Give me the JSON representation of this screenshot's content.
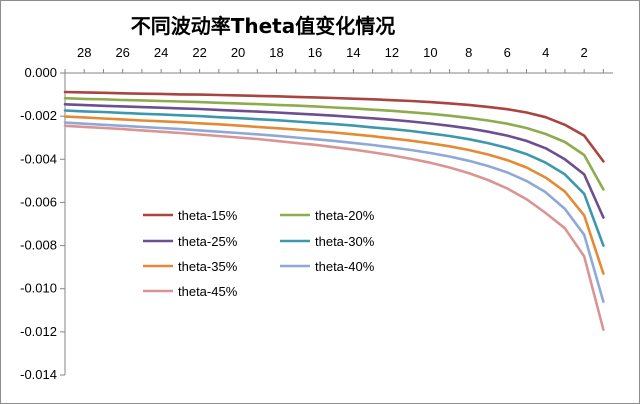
{
  "chart_data": {
    "type": "line",
    "title": "不同波动率Theta值变化情况",
    "xlabel": "",
    "ylabel": "",
    "x_ticks": [
      "28",
      "26",
      "24",
      "22",
      "20",
      "18",
      "16",
      "14",
      "12",
      "10",
      "8",
      "6",
      "4",
      "2"
    ],
    "x_range": [
      29,
      0.5
    ],
    "ylim": [
      -0.014,
      0
    ],
    "y_ticks": [
      0,
      -0.002,
      -0.004,
      -0.006,
      -0.008,
      -0.01,
      -0.012,
      -0.014
    ],
    "y_tick_labels": [
      "0.000",
      "-0.002",
      "-0.004",
      "-0.006",
      "-0.008",
      "-0.010",
      "-0.012",
      "-0.014"
    ],
    "grid": false,
    "legend_position": "lower-left",
    "x": [
      29,
      28,
      27,
      26,
      25,
      24,
      23,
      22,
      21,
      20,
      19,
      18,
      17,
      16,
      15,
      14,
      13,
      12,
      11,
      10,
      9,
      8,
      7,
      6,
      5,
      4,
      3,
      2,
      1
    ],
    "series": [
      {
        "name": "theta-15%",
        "color": "#a94441",
        "values": [
          -0.00088,
          -0.0009,
          -0.00092,
          -0.00094,
          -0.00096,
          -0.00097,
          -0.00099,
          -0.001,
          -0.00102,
          -0.00104,
          -0.00106,
          -0.00108,
          -0.00111,
          -0.00113,
          -0.00116,
          -0.00119,
          -0.00122,
          -0.00126,
          -0.0013,
          -0.00135,
          -0.00141,
          -0.00148,
          -0.00157,
          -0.00168,
          -0.00183,
          -0.00205,
          -0.0024,
          -0.0029,
          -0.0041
        ]
      },
      {
        "name": "theta-20%",
        "color": "#8cac4d",
        "values": [
          -0.00117,
          -0.0012,
          -0.00122,
          -0.00125,
          -0.00127,
          -0.0013,
          -0.00132,
          -0.00135,
          -0.00138,
          -0.00141,
          -0.00144,
          -0.00148,
          -0.00151,
          -0.00155,
          -0.0016,
          -0.00164,
          -0.0017,
          -0.00175,
          -0.00182,
          -0.00189,
          -0.00198,
          -0.00208,
          -0.0022,
          -0.00235,
          -0.00255,
          -0.00283,
          -0.0032,
          -0.0038,
          -0.0054
        ]
      },
      {
        "name": "theta-25%",
        "color": "#6d4e8f",
        "values": [
          -0.00145,
          -0.00149,
          -0.00152,
          -0.00155,
          -0.00158,
          -0.00161,
          -0.00164,
          -0.00167,
          -0.00171,
          -0.00175,
          -0.00179,
          -0.00183,
          -0.00188,
          -0.00193,
          -0.00198,
          -0.00204,
          -0.0021,
          -0.00217,
          -0.00225,
          -0.00234,
          -0.00245,
          -0.00257,
          -0.00272,
          -0.0029,
          -0.00315,
          -0.00349,
          -0.004,
          -0.0047,
          -0.0067
        ]
      },
      {
        "name": "theta-30%",
        "color": "#3d98ad",
        "values": [
          -0.00174,
          -0.00178,
          -0.00181,
          -0.00185,
          -0.00189,
          -0.00192,
          -0.00196,
          -0.002,
          -0.00205,
          -0.00209,
          -0.00214,
          -0.00219,
          -0.00225,
          -0.00231,
          -0.00237,
          -0.00244,
          -0.00252,
          -0.0026,
          -0.00269,
          -0.0028,
          -0.00292,
          -0.00307,
          -0.00325,
          -0.00347,
          -0.00376,
          -0.00416,
          -0.0047,
          -0.0056,
          -0.008
        ]
      },
      {
        "name": "theta-35%",
        "color": "#e48a35",
        "values": [
          -0.00202,
          -0.00206,
          -0.00211,
          -0.00215,
          -0.0022,
          -0.00224,
          -0.00228,
          -0.00233,
          -0.00238,
          -0.00244,
          -0.0025,
          -0.00256,
          -0.00262,
          -0.00269,
          -0.00276,
          -0.00284,
          -0.00293,
          -0.00303,
          -0.00314,
          -0.00326,
          -0.0034,
          -0.00357,
          -0.00378,
          -0.00404,
          -0.00438,
          -0.00485,
          -0.0055,
          -0.0066,
          -0.0093
        ]
      },
      {
        "name": "theta-40%",
        "color": "#8ea8d8",
        "values": [
          -0.0023,
          -0.00235,
          -0.0024,
          -0.00245,
          -0.0025,
          -0.00255,
          -0.0026,
          -0.00266,
          -0.00272,
          -0.00278,
          -0.00284,
          -0.00291,
          -0.00299,
          -0.00307,
          -0.00315,
          -0.00324,
          -0.00334,
          -0.00345,
          -0.00357,
          -0.00371,
          -0.00387,
          -0.00407,
          -0.00431,
          -0.00461,
          -0.005,
          -0.00553,
          -0.0063,
          -0.0075,
          -0.0106
        ]
      },
      {
        "name": "theta-45%",
        "color": "#d99594",
        "values": [
          -0.00245,
          -0.0025,
          -0.00255,
          -0.0026,
          -0.00266,
          -0.00272,
          -0.00278,
          -0.00285,
          -0.00292,
          -0.00299,
          -0.00306,
          -0.00315,
          -0.00324,
          -0.00333,
          -0.00344,
          -0.00355,
          -0.00368,
          -0.00382,
          -0.00398,
          -0.00416,
          -0.00438,
          -0.00464,
          -0.00496,
          -0.00535,
          -0.00585,
          -0.00649,
          -0.0072,
          -0.0085,
          -0.0119
        ]
      }
    ]
  }
}
